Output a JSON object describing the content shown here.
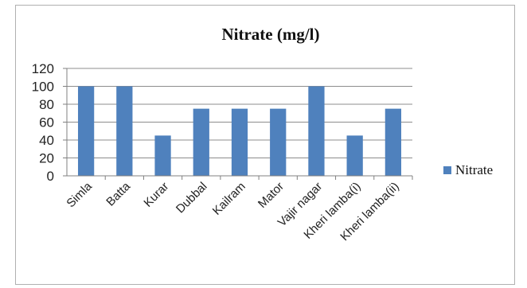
{
  "chart_data": {
    "type": "bar",
    "title": "Nitrate (mg/l)",
    "categories": [
      "Simla",
      "Batta",
      "Kurar",
      "Dubbal",
      "Kailram",
      "Mator",
      "Vajir nagar",
      "Kheri lamba(i)",
      "Kheri lamba(ii)"
    ],
    "series": [
      {
        "name": "Nitrate",
        "values": [
          100,
          100,
          45,
          75,
          75,
          75,
          100,
          45,
          75
        ],
        "color": "#4f81bd"
      }
    ],
    "ylim": [
      0,
      120
    ],
    "yticks": [
      0,
      20,
      40,
      60,
      80,
      100,
      120
    ],
    "xlabel": "",
    "ylabel": "",
    "grid": true,
    "legend_position": "right"
  }
}
